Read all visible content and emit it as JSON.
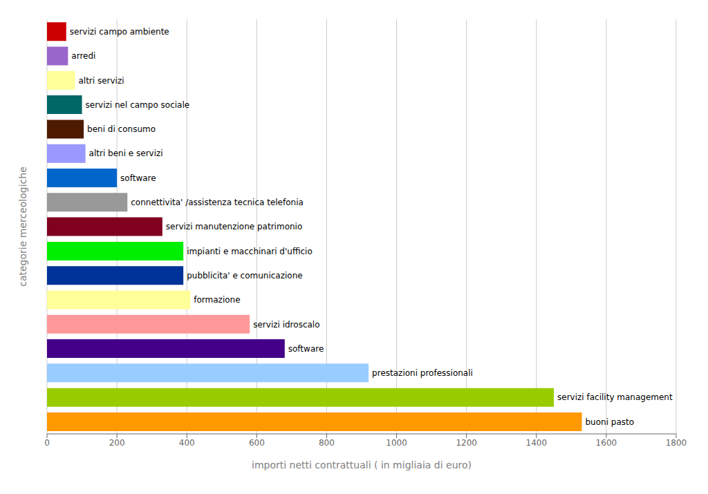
{
  "chart_data": {
    "type": "bar",
    "orientation": "horizontal",
    "categories": [
      "buoni pasto",
      "servizi facility management",
      "prestazioni professionali",
      "software",
      "servizi idroscalo",
      "formazione",
      "pubblicita' e comunicazione",
      "impianti e macchinari d'ufficio",
      "servizi manutenzione patrimonio",
      "connettivita' /assistenza tecnica telefonia",
      "software",
      "altri beni e servizi",
      "beni di consumo",
      "servizi nel campo sociale",
      "altri servizi",
      "arredi",
      "servizi campo ambiente"
    ],
    "values": [
      1530,
      1450,
      920,
      680,
      580,
      410,
      390,
      390,
      330,
      230,
      200,
      110,
      105,
      100,
      80,
      60,
      55
    ],
    "colors": [
      "#ff9900",
      "#99cc00",
      "#99ccff",
      "#440088",
      "#ff9999",
      "#ffff99",
      "#003399",
      "#00ee00",
      "#800020",
      "#999999",
      "#0066cc",
      "#9999ff",
      "#4d1a00",
      "#006666",
      "#ffff99",
      "#9966cc",
      "#cc0000"
    ],
    "xlabel": "importi netti contrattuali ( in migliaia di euro)",
    "ylabel": "categorie merceologiche",
    "xlim": [
      0,
      1800
    ],
    "xticks": [
      0,
      200,
      400,
      600,
      800,
      1000,
      1200,
      1400,
      1600,
      1800
    ],
    "grid": true,
    "tick_labels": "x"
  }
}
